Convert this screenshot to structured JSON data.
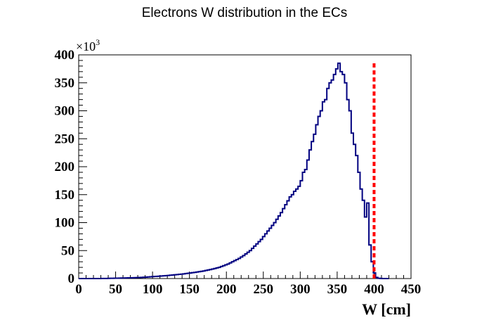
{
  "chart_data": {
    "type": "histogram",
    "title": "Electrons W distribution in the ECs",
    "xlabel": "W [cm]",
    "ylabel": "",
    "y_multiplier_label": "×10",
    "y_multiplier_exponent": "3",
    "xlim": [
      0,
      450
    ],
    "ylim": [
      0,
      400
    ],
    "x_ticks": [
      0,
      50,
      100,
      150,
      200,
      250,
      300,
      350,
      400,
      450
    ],
    "y_ticks": [
      0,
      50,
      100,
      150,
      200,
      250,
      300,
      350,
      400
    ],
    "grid": false,
    "legend": "none",
    "bin_width": 3,
    "series": [
      {
        "color": "#000080",
        "bin_start": 0,
        "values": [
          0.0,
          0.0,
          0.0,
          0.0,
          0.0,
          0.0,
          0.0,
          0.0,
          0.0,
          0.0,
          0.1,
          0.1,
          0.2,
          0.3,
          0.4,
          0.5,
          0.6,
          0.7,
          0.8,
          0.9,
          1.0,
          1.1,
          1.2,
          1.3,
          1.4,
          1.5,
          1.7,
          1.9,
          2.1,
          2.3,
          2.5,
          2.8,
          3.1,
          3.4,
          3.7,
          4.0,
          4.3,
          4.6,
          4.9,
          5.2,
          5.5,
          5.9,
          6.3,
          6.7,
          7.1,
          7.5,
          7.9,
          8.4,
          8.9,
          9.4,
          9.9,
          10.5,
          11.0,
          11.6,
          12.2,
          12.9,
          13.6,
          14.4,
          15.2,
          16.0,
          17.0,
          18.0,
          19.0,
          20.0,
          21.5,
          23.0,
          24.5,
          26.0,
          28.0,
          30.0,
          32.0,
          34.0,
          36.0,
          38.5,
          41.0,
          44.0,
          47.0,
          50.0,
          54.0,
          58.0,
          62.0,
          66.0,
          70.0,
          75.0,
          80.0,
          85.0,
          90.0,
          95.0,
          100.0,
          106.0,
          112.0,
          118.0,
          125.0,
          132.0,
          139.0,
          146.0,
          150.0,
          156.0,
          160.0,
          165.0,
          175.0,
          190.0,
          195.0,
          212.0,
          230.0,
          245.0,
          258.0,
          275.0,
          290.0,
          300.0,
          316.0,
          320.0,
          340.0,
          350.0,
          355.0,
          365.0,
          375.0,
          385.0,
          370.0,
          365.0,
          350.0,
          320.0,
          300.0,
          260.0,
          240.0,
          220.0,
          190.0,
          160.0,
          140.0,
          110.0,
          135.0,
          60.0,
          30.0,
          10.0,
          2.0,
          0.5,
          0.1,
          0.0,
          0.0,
          0.0
        ]
      }
    ],
    "cut_line": {
      "x": 400,
      "color": "#ff0000",
      "style": "dashed"
    }
  }
}
